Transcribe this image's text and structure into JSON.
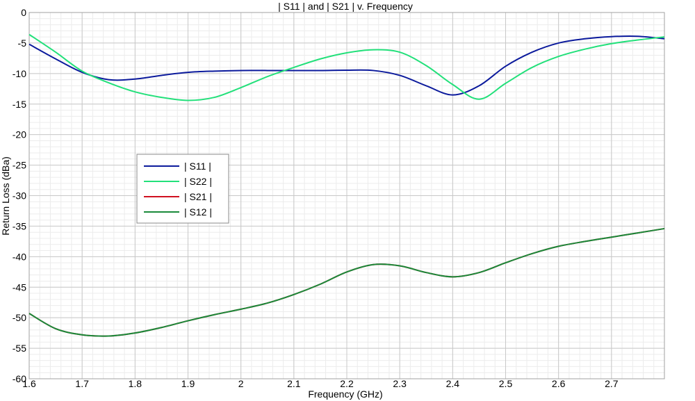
{
  "chart_data": {
    "type": "line",
    "title": "| S11 | and | S21 | v. Frequency",
    "xlabel": "Frequency (GHz)",
    "ylabel": "Return Loss (dBa)",
    "xlim": [
      1.6,
      2.8
    ],
    "ylim": [
      -60,
      0
    ],
    "x_ticks": [
      "1.6",
      "1.7",
      "1.8",
      "1.9",
      "2",
      "2.1",
      "2.2",
      "2.3",
      "2.4",
      "2.5",
      "2.6",
      "2.7"
    ],
    "y_ticks": [
      "0",
      "-5",
      "-10",
      "-15",
      "-20",
      "-25",
      "-30",
      "-35",
      "-40",
      "-45",
      "-50",
      "-55",
      "-60"
    ],
    "grid": true,
    "legend_position": "center-left",
    "series": [
      {
        "name": "| S11 |",
        "color": "#0b1a9c",
        "points": [
          [
            1.6,
            -5.2
          ],
          [
            1.65,
            -7.6
          ],
          [
            1.7,
            -9.8
          ],
          [
            1.75,
            -11.0
          ],
          [
            1.8,
            -10.9
          ],
          [
            1.85,
            -10.3
          ],
          [
            1.9,
            -9.8
          ],
          [
            1.95,
            -9.6
          ],
          [
            2.0,
            -9.5
          ],
          [
            2.05,
            -9.5
          ],
          [
            2.1,
            -9.5
          ],
          [
            2.15,
            -9.5
          ],
          [
            2.2,
            -9.45
          ],
          [
            2.25,
            -9.5
          ],
          [
            2.3,
            -10.3
          ],
          [
            2.35,
            -12.0
          ],
          [
            2.4,
            -13.5
          ],
          [
            2.45,
            -12.0
          ],
          [
            2.5,
            -8.8
          ],
          [
            2.55,
            -6.5
          ],
          [
            2.6,
            -5.0
          ],
          [
            2.65,
            -4.3
          ],
          [
            2.7,
            -3.95
          ],
          [
            2.75,
            -3.9
          ],
          [
            2.8,
            -4.3
          ]
        ]
      },
      {
        "name": "| S22 |",
        "color": "#22e07a",
        "points": [
          [
            1.6,
            -3.6
          ],
          [
            1.65,
            -6.5
          ],
          [
            1.7,
            -9.6
          ],
          [
            1.75,
            -11.5
          ],
          [
            1.8,
            -13.0
          ],
          [
            1.85,
            -13.9
          ],
          [
            1.9,
            -14.4
          ],
          [
            1.95,
            -13.9
          ],
          [
            2.0,
            -12.3
          ],
          [
            2.05,
            -10.5
          ],
          [
            2.1,
            -9.0
          ],
          [
            2.15,
            -7.6
          ],
          [
            2.2,
            -6.6
          ],
          [
            2.25,
            -6.1
          ],
          [
            2.3,
            -6.5
          ],
          [
            2.35,
            -8.7
          ],
          [
            2.4,
            -11.8
          ],
          [
            2.45,
            -14.2
          ],
          [
            2.5,
            -11.6
          ],
          [
            2.55,
            -9.0
          ],
          [
            2.6,
            -7.2
          ],
          [
            2.65,
            -6.0
          ],
          [
            2.7,
            -5.1
          ],
          [
            2.75,
            -4.5
          ],
          [
            2.8,
            -4.0
          ]
        ]
      },
      {
        "name": "| S21 |",
        "color": "#d01020",
        "points": [
          [
            1.6,
            -49.3
          ],
          [
            1.65,
            -51.8
          ],
          [
            1.7,
            -52.8
          ],
          [
            1.75,
            -53.0
          ],
          [
            1.8,
            -52.5
          ],
          [
            1.85,
            -51.6
          ],
          [
            1.9,
            -50.5
          ],
          [
            1.95,
            -49.5
          ],
          [
            2.0,
            -48.6
          ],
          [
            2.05,
            -47.6
          ],
          [
            2.1,
            -46.2
          ],
          [
            2.15,
            -44.5
          ],
          [
            2.2,
            -42.5
          ],
          [
            2.25,
            -41.3
          ],
          [
            2.3,
            -41.5
          ],
          [
            2.35,
            -42.6
          ],
          [
            2.4,
            -43.3
          ],
          [
            2.45,
            -42.6
          ],
          [
            2.5,
            -41.0
          ],
          [
            2.55,
            -39.5
          ],
          [
            2.6,
            -38.3
          ],
          [
            2.65,
            -37.5
          ],
          [
            2.7,
            -36.8
          ],
          [
            2.75,
            -36.1
          ],
          [
            2.8,
            -35.4
          ]
        ]
      },
      {
        "name": "| S12 |",
        "color": "#1a8a3a",
        "points": [
          [
            1.6,
            -49.3
          ],
          [
            1.65,
            -51.8
          ],
          [
            1.7,
            -52.8
          ],
          [
            1.75,
            -53.0
          ],
          [
            1.8,
            -52.5
          ],
          [
            1.85,
            -51.6
          ],
          [
            1.9,
            -50.5
          ],
          [
            1.95,
            -49.5
          ],
          [
            2.0,
            -48.6
          ],
          [
            2.05,
            -47.6
          ],
          [
            2.1,
            -46.2
          ],
          [
            2.15,
            -44.5
          ],
          [
            2.2,
            -42.5
          ],
          [
            2.25,
            -41.3
          ],
          [
            2.3,
            -41.5
          ],
          [
            2.35,
            -42.6
          ],
          [
            2.4,
            -43.3
          ],
          [
            2.45,
            -42.6
          ],
          [
            2.5,
            -41.0
          ],
          [
            2.55,
            -39.5
          ],
          [
            2.6,
            -38.3
          ],
          [
            2.65,
            -37.5
          ],
          [
            2.7,
            -36.8
          ],
          [
            2.75,
            -36.1
          ],
          [
            2.8,
            -35.4
          ]
        ]
      }
    ]
  }
}
